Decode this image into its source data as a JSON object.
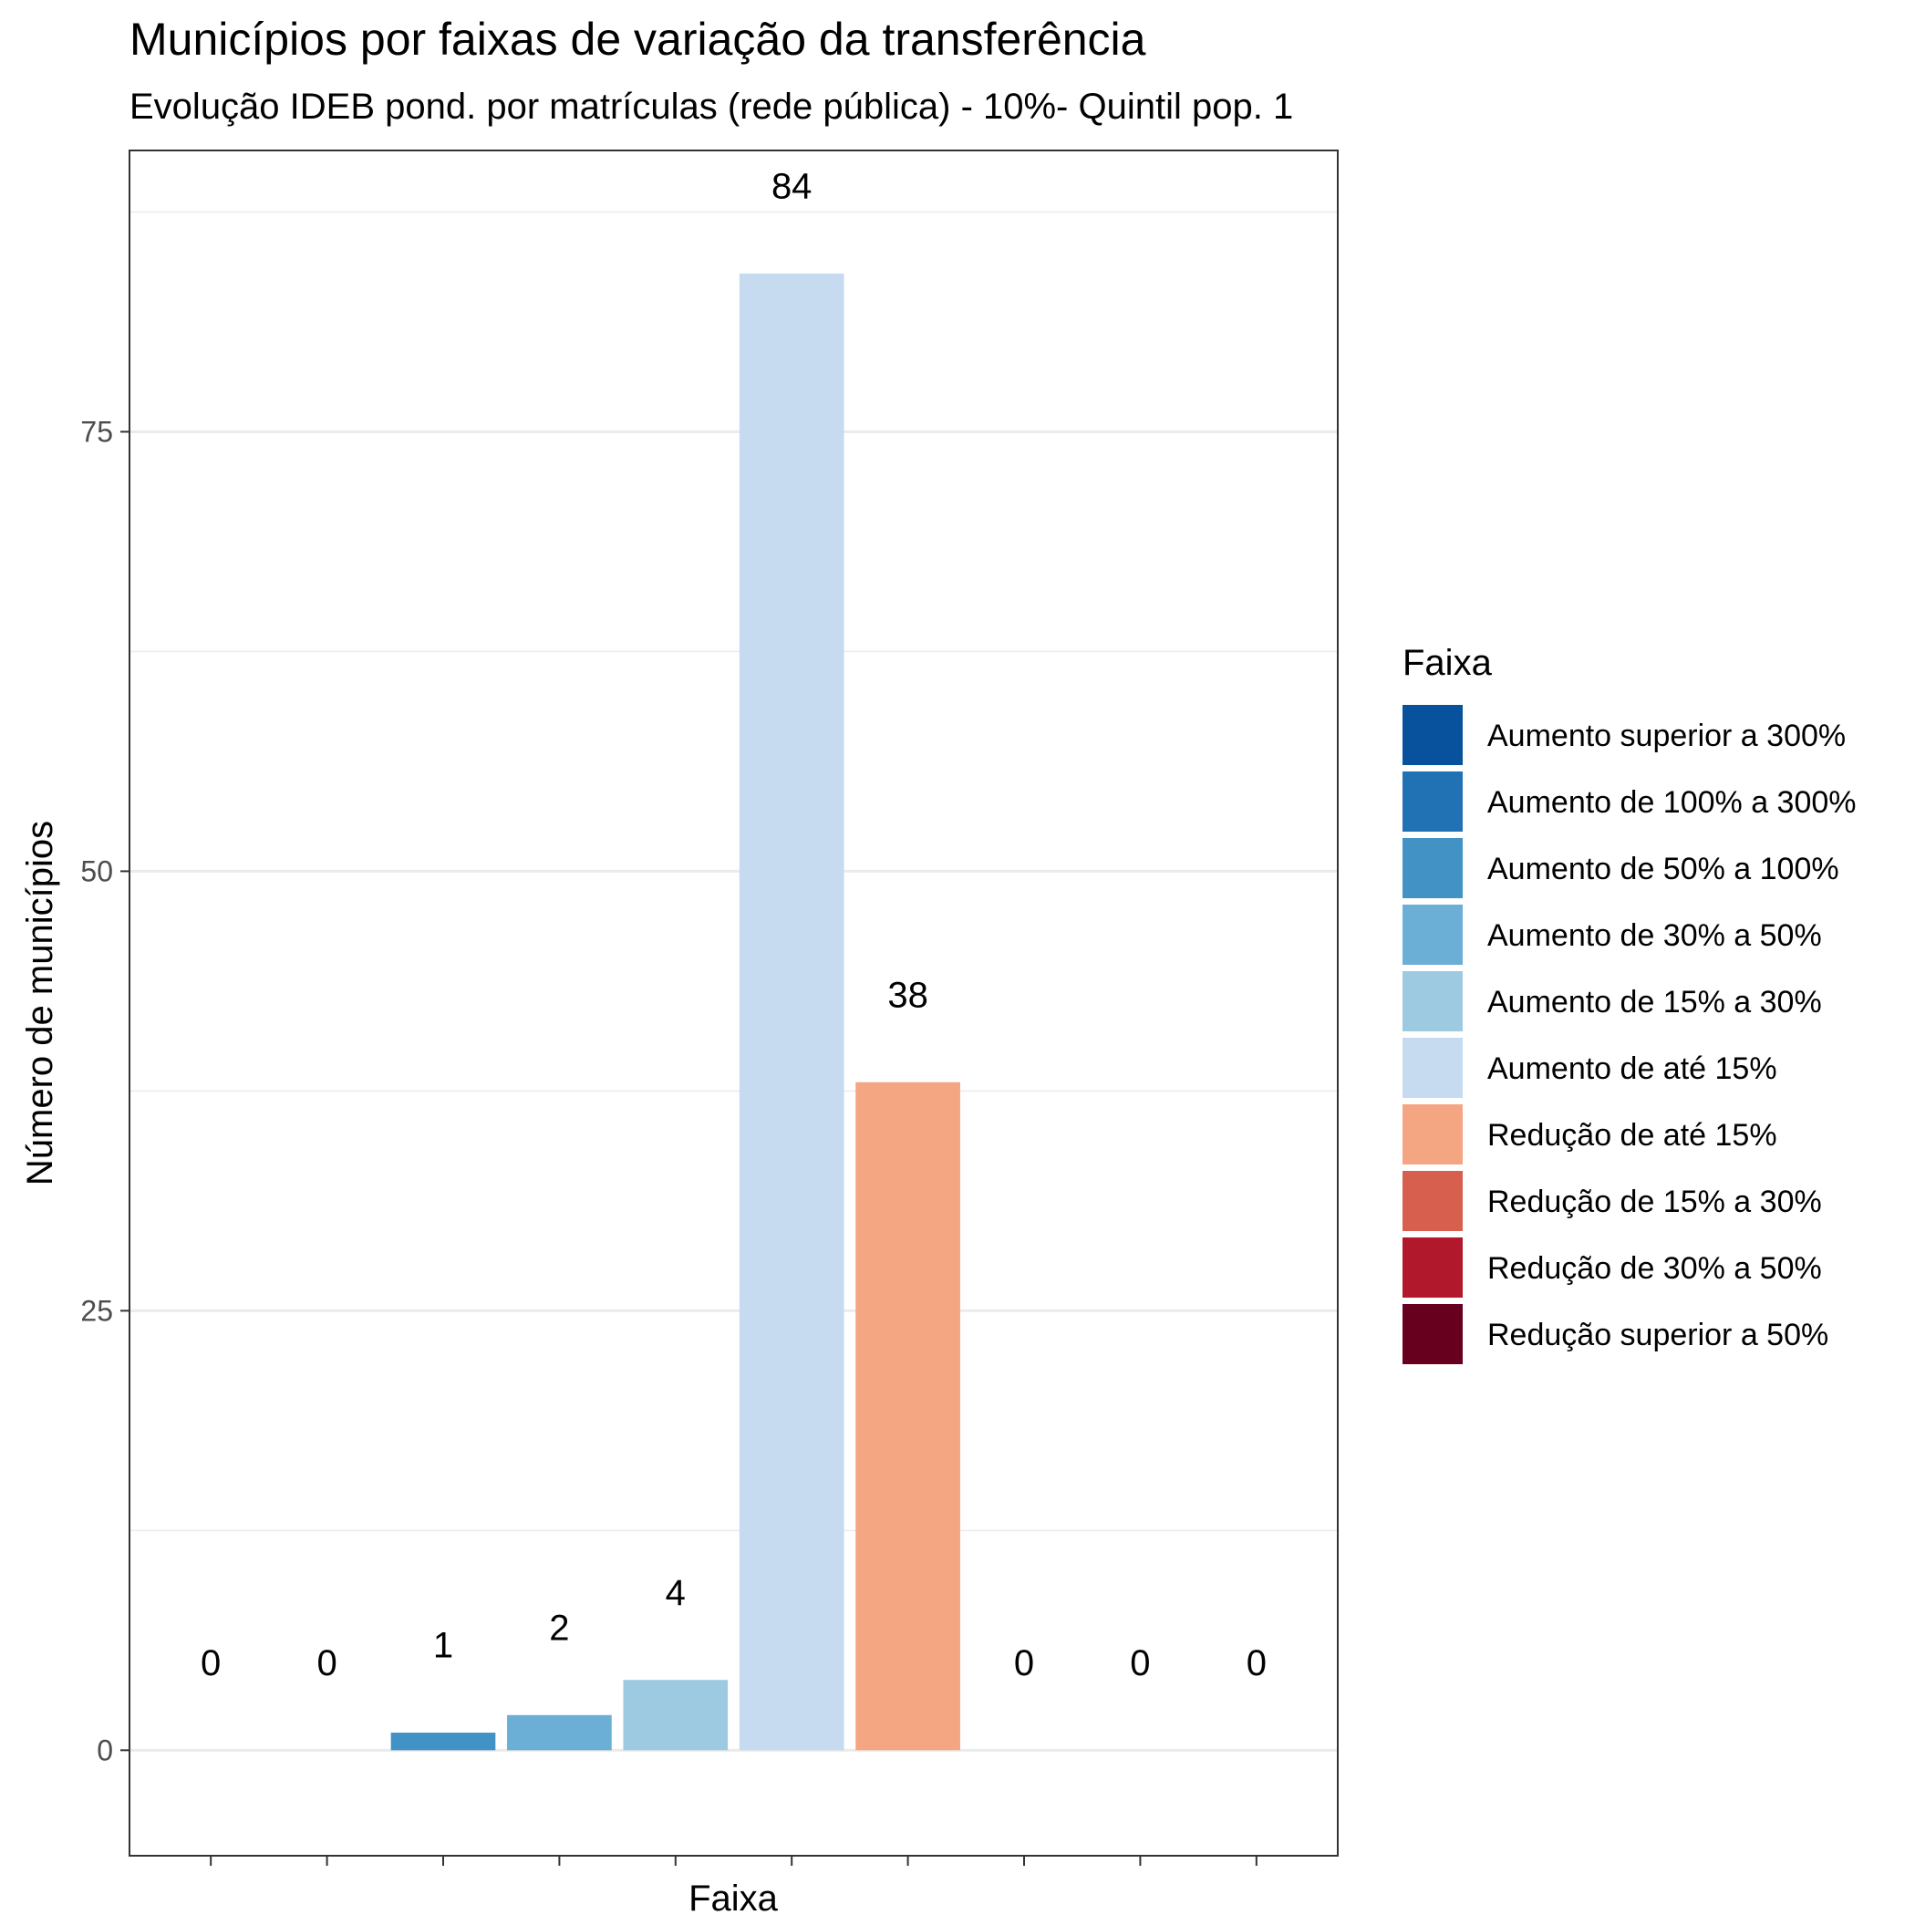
{
  "chart_data": {
    "type": "bar",
    "title": "Municípios por faixas de variação da transferência",
    "subtitle": "Evolução IDEB pond. por matrículas (rede pública) - 10%- Quintil pop. 1",
    "xlabel": "Faixa",
    "ylabel": "Número de municípios",
    "ylim": [
      -6,
      91
    ],
    "yticks": [
      0,
      25,
      50,
      75
    ],
    "grid": true,
    "legend": {
      "title": "Faixa",
      "position": "right"
    },
    "categories": [
      "Aumento superior a 300%",
      "Aumento de 100% a 300%",
      "Aumento de 50% a 100%",
      "Aumento de 30% a 50%",
      "Aumento de 15% a 30%",
      "Aumento de até 15%",
      "Redução de até 15%",
      "Redução de 15% a 30%",
      "Redução de 30% a 50%",
      "Redução superior a 50%"
    ],
    "values": [
      0,
      0,
      1,
      2,
      4,
      84,
      38,
      0,
      0,
      0
    ],
    "data_labels": [
      "0",
      "0",
      "1",
      "2",
      "4",
      "84",
      "38",
      "0",
      "0",
      "0"
    ],
    "colors": [
      "#08519C",
      "#2171B5",
      "#4292C6",
      "#6BAED6",
      "#9ECAE1",
      "#C6DBEF",
      "#F4A582",
      "#D6604D",
      "#B2182B",
      "#67001F"
    ]
  }
}
